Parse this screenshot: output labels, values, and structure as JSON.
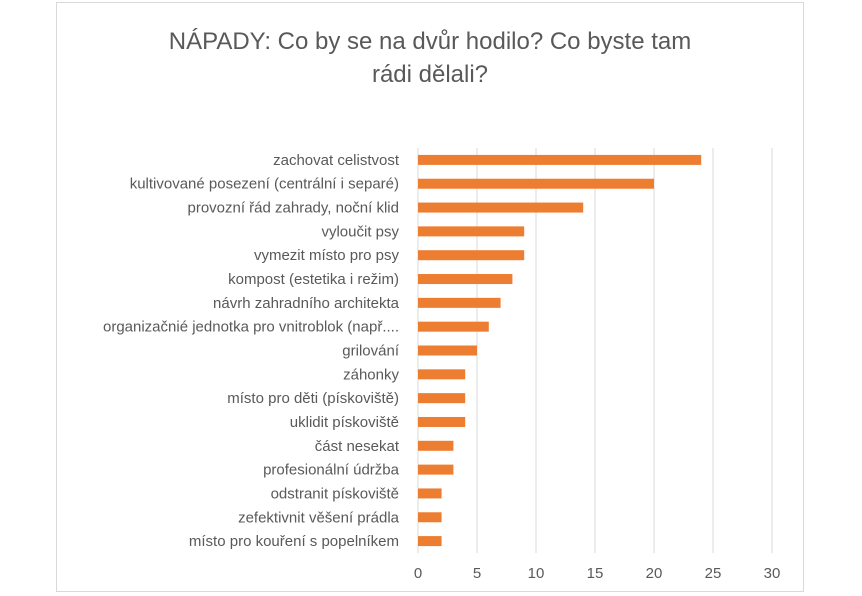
{
  "chart_data": {
    "type": "bar",
    "orientation": "horizontal",
    "title": "NÁPADY: Co by se na dvůr hodilo? Co byste tam\nrádi dělali?",
    "xlabel": "",
    "ylabel": "",
    "xlim": [
      0,
      30
    ],
    "xticks": [
      0,
      5,
      10,
      15,
      20,
      25,
      30
    ],
    "grid": "vertical",
    "legend": "none",
    "bar_color": "#ED7D31",
    "categories": [
      "zachovat celistvost",
      "kultivované posezení (centrální i separé)",
      "provozní řád zahrady, noční klid",
      "vyloučit psy",
      "vymezit místo pro psy",
      "kompost (estetika i režim)",
      "návrh zahradního architekta",
      "organizačnié jednotka pro vnitroblok (např....",
      "grilování",
      "záhonky",
      "místo pro děti (pískoviště)",
      "uklidit pískoviště",
      "část nesekat",
      "profesionální údržba",
      "odstranit pískoviště",
      "zefektivnit věšení prádla",
      "místo pro kouření s popelníkem"
    ],
    "values": [
      24,
      20,
      14,
      9,
      9,
      8,
      7,
      6,
      5,
      4,
      4,
      4,
      3,
      3,
      2,
      2,
      2
    ]
  }
}
